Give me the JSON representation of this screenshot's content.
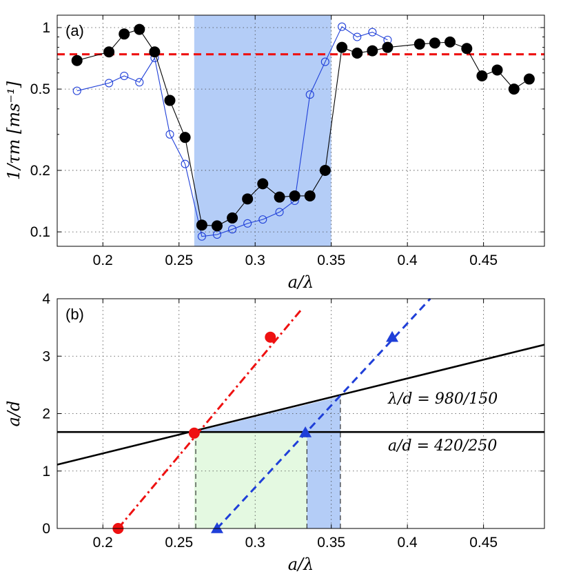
{
  "chart_data": [
    {
      "panel": "(a)",
      "type": "line",
      "yscale": "log",
      "xlabel": "a/λ",
      "ylabel": "1/τm [ms⁻¹]",
      "xlim": [
        0.17,
        0.49
      ],
      "ylim": [
        0.085,
        1.15
      ],
      "xticks": [
        0.2,
        0.25,
        0.3,
        0.35,
        0.4,
        0.45
      ],
      "xtick_labels": [
        "0.2",
        "0.25",
        "0.3",
        "0.35",
        "0.4",
        "0.45"
      ],
      "yticks": [
        0.1,
        0.2,
        0.5,
        1
      ],
      "ytick_labels": [
        "0.1",
        "0.2",
        "0.5",
        "1"
      ],
      "grid": true,
      "shaded_band": {
        "x0": 0.26,
        "x1": 0.35,
        "color": "#b4cdf7"
      },
      "reference_line": {
        "y": 0.74,
        "color": "#ee1111",
        "style": "dashed"
      },
      "series": [
        {
          "name": "filled",
          "marker": "filled-circle",
          "color": "#000000",
          "x": [
            0.183,
            0.204,
            0.214,
            0.224,
            0.234,
            0.244,
            0.254,
            0.265,
            0.275,
            0.285,
            0.295,
            0.305,
            0.316,
            0.326,
            0.336,
            0.346,
            0.357,
            0.367,
            0.377,
            0.387,
            0.408,
            0.418,
            0.428,
            0.439,
            0.449,
            0.459,
            0.47,
            0.48
          ],
          "y": [
            0.69,
            0.76,
            0.93,
            0.98,
            0.76,
            0.44,
            0.29,
            0.108,
            0.107,
            0.117,
            0.145,
            0.172,
            0.148,
            0.15,
            0.15,
            0.2,
            0.8,
            0.75,
            0.77,
            0.8,
            0.83,
            0.84,
            0.85,
            0.79,
            0.58,
            0.62,
            0.5,
            0.56
          ]
        },
        {
          "name": "open",
          "marker": "open-circle",
          "color": "#1f3fd8",
          "x": [
            0.183,
            0.204,
            0.214,
            0.224,
            0.234,
            0.244,
            0.254,
            0.265,
            0.275,
            0.285,
            0.295,
            0.305,
            0.316,
            0.326,
            0.336,
            0.346,
            0.357,
            0.367,
            0.377,
            0.387
          ],
          "y": [
            0.49,
            0.535,
            0.58,
            0.54,
            0.71,
            0.3,
            0.215,
            0.095,
            0.097,
            0.103,
            0.11,
            0.115,
            0.125,
            0.142,
            0.47,
            0.68,
            1.01,
            0.9,
            0.95,
            0.87
          ]
        }
      ]
    },
    {
      "panel": "(b)",
      "type": "line",
      "xlabel": "a/λ",
      "ylabel": "a/d",
      "xlim": [
        0.17,
        0.49
      ],
      "ylim": [
        0,
        4
      ],
      "xticks": [
        0.2,
        0.25,
        0.3,
        0.35,
        0.4,
        0.45
      ],
      "xtick_labels": [
        "0.2",
        "0.25",
        "0.3",
        "0.35",
        "0.4",
        "0.45"
      ],
      "yticks": [
        0,
        1,
        2,
        3,
        4
      ],
      "ytick_labels": [
        "0",
        "1",
        "2",
        "3",
        "4"
      ],
      "grid": true,
      "lines": [
        {
          "name": "λ/d = 980/150",
          "color": "#000000",
          "style": "solid",
          "x": [
            0.17,
            0.49
          ],
          "y": [
            1.111,
            3.2
          ]
        },
        {
          "name": "a/d = 420/250",
          "color": "#000000",
          "style": "solid",
          "x": [
            0.17,
            0.49
          ],
          "y": [
            1.68,
            1.68
          ]
        },
        {
          "name": "red",
          "color": "#ee1111",
          "style": "dashdot",
          "x": [
            0.21,
            0.33
          ],
          "y": [
            0,
            3.8
          ]
        },
        {
          "name": "blue",
          "color": "#1f3fd8",
          "style": "dashed",
          "x": [
            0.275,
            0.415
          ],
          "y": [
            0,
            4.0
          ]
        }
      ],
      "markers": [
        {
          "shape": "circle",
          "color": "#ee1111",
          "x": [
            0.21,
            0.26,
            0.31
          ],
          "y": [
            0,
            1.66,
            3.33
          ]
        },
        {
          "shape": "triangle",
          "color": "#1f3fd8",
          "x": [
            0.275,
            0.333,
            0.39
          ],
          "y": [
            0,
            1.67,
            3.33
          ]
        }
      ],
      "shaded_regions": [
        {
          "name": "blue",
          "color": "#b4cdf7",
          "polygon": [
            [
              0.26,
              1.68
            ],
            [
              0.356,
              2.3
            ],
            [
              0.356,
              0
            ],
            [
              0.334,
              0
            ],
            [
              0.334,
              1.68
            ]
          ]
        },
        {
          "name": "green",
          "color": "#e4f9e1",
          "polygon": [
            [
              0.26,
              0
            ],
            [
              0.26,
              1.68
            ],
            [
              0.334,
              1.68
            ],
            [
              0.334,
              0
            ]
          ]
        }
      ],
      "vertical_dashed": [
        0.261,
        0.334,
        0.356
      ],
      "annotations": [
        {
          "text": "λ/d = 980/150"
        },
        {
          "text": "a/d = 420/250"
        }
      ]
    }
  ]
}
